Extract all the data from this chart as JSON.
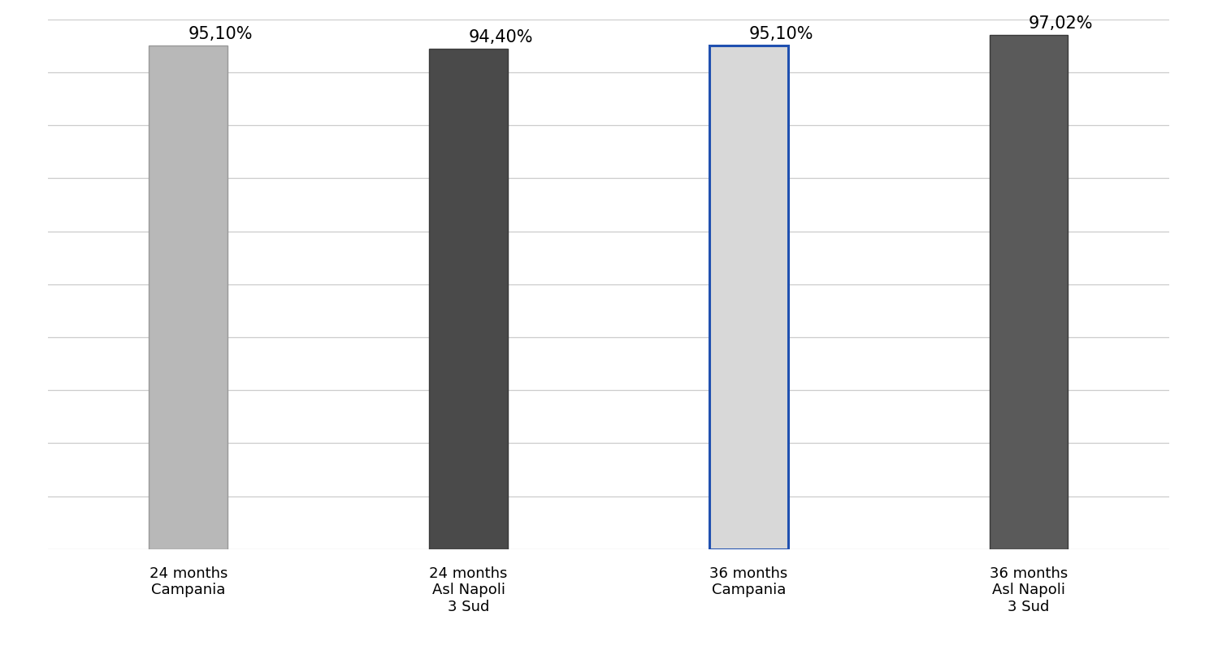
{
  "categories": [
    "24 months\nCampania",
    "24 months\nAsl Napoli\n3 Sud",
    "36 months\nCampania",
    "36 months\nAsl Napoli\n3 Sud"
  ],
  "values": [
    95.1,
    94.4,
    95.1,
    97.02
  ],
  "labels": [
    "95,10%",
    "94,40%",
    "95,10%",
    "97,02%"
  ],
  "bar_colors": [
    "#b8b8b8",
    "#4a4a4a",
    "#d8d8d8",
    "#5a5a5a"
  ],
  "bar_edgecolors": [
    "#999999",
    "#3a3a3a",
    "#2050b0",
    "#3a3a3a"
  ],
  "bar_linewidths": [
    1.0,
    1.0,
    2.2,
    1.0
  ],
  "background_color": "#ffffff",
  "ylim": [
    0,
    100
  ],
  "yticks": [
    0,
    10,
    20,
    30,
    40,
    50,
    60,
    70,
    80,
    90,
    100
  ],
  "bar_width": 0.28,
  "label_fontsize": 15,
  "tick_label_fontsize": 13,
  "grid_color": "#cccccc",
  "grid_linewidth": 0.9,
  "x_positions": [
    0,
    1,
    2,
    3
  ]
}
